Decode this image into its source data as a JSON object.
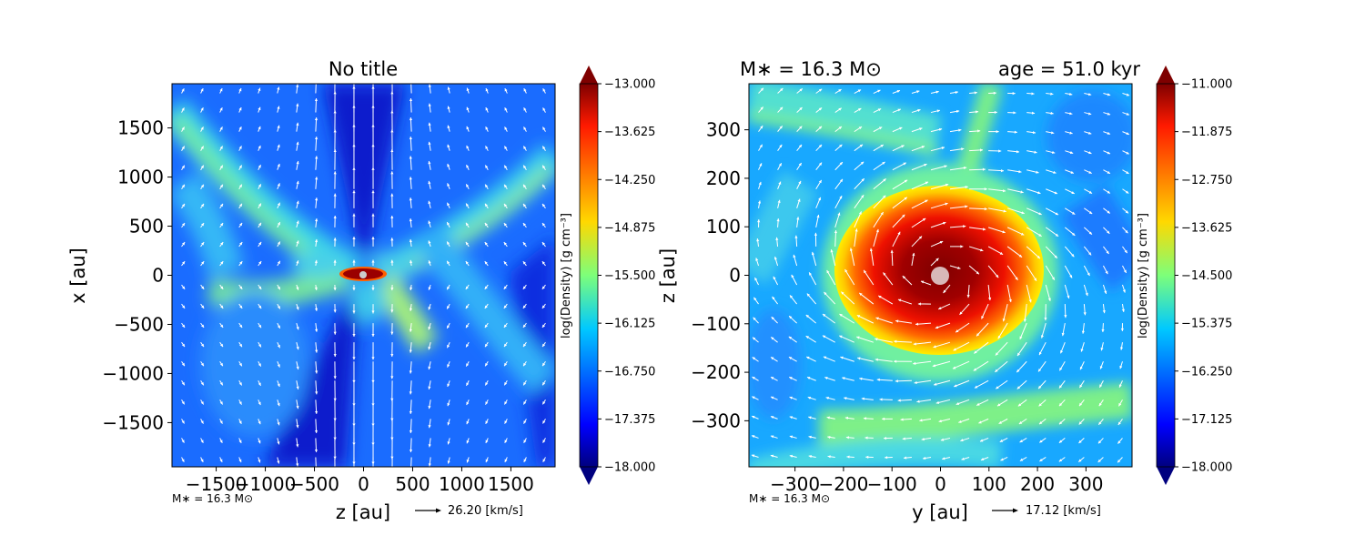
{
  "chart_data": [
    {
      "type": "heatmap",
      "title": "No title",
      "xlabel": "z [au]",
      "ylabel": "x [au]",
      "xlim": [
        -1950,
        1950
      ],
      "ylim": [
        -1950,
        1950
      ],
      "xticks": [
        -1500,
        -1000,
        -500,
        0,
        500,
        1000,
        1500
      ],
      "yticks": [
        -1500,
        -1000,
        -500,
        0,
        500,
        1000,
        1500
      ],
      "xtick_labels": [
        "−1500",
        "−1000",
        "−500",
        "0",
        "500",
        "1000",
        "1500"
      ],
      "ytick_labels": [
        "−1500",
        "−1000",
        "−500",
        "0",
        "500",
        "1000",
        "1500"
      ],
      "colorbar": {
        "label": "log(Density) [g cm⁻³]",
        "vmin": -18.0,
        "vmax": -13.0,
        "ticks": [
          -13.0,
          -13.625,
          -14.25,
          -14.875,
          -15.5,
          -16.125,
          -16.75,
          -17.375,
          -18.0
        ],
        "tick_labels": [
          "−13.000",
          "−13.625",
          "−14.250",
          "−14.875",
          "−15.500",
          "−16.125",
          "−16.750",
          "−17.375",
          "−18.000"
        ]
      },
      "annotation": "M∗ = 16.3 M⊙",
      "quiver_key": "26.20 [km/s]"
    },
    {
      "type": "heatmap",
      "title_left": "M∗ = 16.3 M⊙",
      "title_right": "age = 51.0 kyr",
      "xlabel": "y [au]",
      "ylabel": "z [au]",
      "xlim": [
        -395,
        395
      ],
      "ylim": [
        -395,
        395
      ],
      "xticks": [
        -300,
        -200,
        -100,
        0,
        100,
        200,
        300
      ],
      "yticks": [
        -300,
        -200,
        -100,
        0,
        100,
        200,
        300
      ],
      "xtick_labels": [
        "−300",
        "−200",
        "−100",
        "0",
        "100",
        "200",
        "300"
      ],
      "ytick_labels": [
        "−300",
        "−200",
        "−100",
        "0",
        "100",
        "200",
        "300"
      ],
      "colorbar": {
        "label": "log(Density) [g cm⁻³]",
        "vmin": -18.0,
        "vmax": -11.0,
        "ticks": [
          -11.0,
          -11.875,
          -12.75,
          -13.625,
          -14.5,
          -15.375,
          -16.25,
          -17.125,
          -18.0
        ],
        "tick_labels": [
          "−11.000",
          "−11.875",
          "−12.750",
          "−13.625",
          "−14.500",
          "−15.375",
          "−16.250",
          "−17.125",
          "−18.000"
        ]
      },
      "annotation": "M∗ = 16.3 M⊙",
      "quiver_key": "17.12 [km/s]"
    }
  ],
  "colors": {
    "star_left": "#cccccc",
    "star_right": "#d8b8b8",
    "vectors": "#ffffff"
  }
}
